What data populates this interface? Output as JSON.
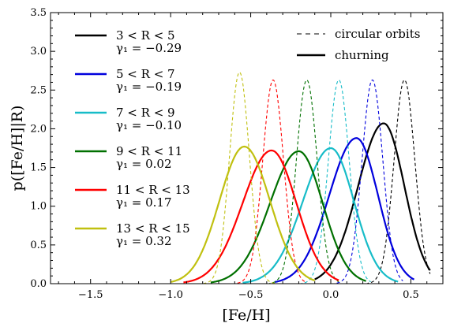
{
  "chart_data": {
    "type": "line",
    "xlabel": "[Fe/H]",
    "ylabel": "p([Fe/H]|R)",
    "xlim": [
      -1.75,
      0.7
    ],
    "ylim": [
      0,
      3.5
    ],
    "xticks": [
      -1.5,
      -1.0,
      -0.5,
      0.0,
      0.5
    ],
    "xtick_labels": [
      "−1.5",
      "−1.0",
      "−0.5",
      "0.0",
      "0.5"
    ],
    "yticks": [
      0.0,
      0.5,
      1.0,
      1.5,
      2.0,
      2.5,
      3.0,
      3.5
    ],
    "ytick_labels": [
      "0.0",
      "0.5",
      "1.0",
      "1.5",
      "2.0",
      "2.5",
      "3.0",
      "3.5"
    ],
    "grid": false,
    "series": [
      {
        "name": "3 < R < 5",
        "gamma_label": "γ₁ = −0.29",
        "color": "#000000",
        "circular": {
          "peak_x": 0.46,
          "peak_y": 2.63,
          "sigma": 0.065,
          "min_x": 0.15,
          "max_x": 0.62
        },
        "churning": {
          "peak_x": 0.33,
          "peak_y": 2.07,
          "sigma_left": 0.16,
          "sigma_right": 0.13,
          "min_x": -0.1,
          "max_x": 0.62
        }
      },
      {
        "name": "5 < R < 7",
        "gamma_label": "γ₁ = −0.19",
        "color": "#0000dd",
        "circular": {
          "peak_x": 0.26,
          "peak_y": 2.63,
          "sigma": 0.065,
          "min_x": -0.1,
          "max_x": 0.45
        },
        "churning": {
          "peak_x": 0.16,
          "peak_y": 1.88,
          "sigma_left": 0.17,
          "sigma_right": 0.135,
          "min_x": -0.35,
          "max_x": 0.52
        }
      },
      {
        "name": "7 < R < 9",
        "gamma_label": "γ₁ = −0.10",
        "color": "#17bcc8",
        "circular": {
          "peak_x": 0.05,
          "peak_y": 2.63,
          "sigma": 0.065,
          "min_x": -0.3,
          "max_x": 0.25
        },
        "churning": {
          "peak_x": 0.0,
          "peak_y": 1.75,
          "sigma_left": 0.175,
          "sigma_right": 0.145,
          "min_x": -0.55,
          "max_x": 0.42
        }
      },
      {
        "name": "9 < R < 11",
        "gamma_label": "γ₁ = 0.02",
        "color": "#007000",
        "circular": {
          "peak_x": -0.15,
          "peak_y": 2.63,
          "sigma": 0.065,
          "min_x": -0.5,
          "max_x": 0.05
        },
        "churning": {
          "peak_x": -0.2,
          "peak_y": 1.71,
          "sigma_left": 0.18,
          "sigma_right": 0.15,
          "min_x": -0.75,
          "max_x": 0.22
        }
      },
      {
        "name": "11 < R < 13",
        "gamma_label": "γ₁ = 0.17",
        "color": "#ff0000",
        "circular": {
          "peak_x": -0.36,
          "peak_y": 2.63,
          "sigma": 0.065,
          "min_x": -0.72,
          "max_x": -0.15
        },
        "churning": {
          "peak_x": -0.37,
          "peak_y": 1.72,
          "sigma_left": 0.18,
          "sigma_right": 0.155,
          "min_x": -0.92,
          "max_x": 0.05
        }
      },
      {
        "name": "13 < R < 15",
        "gamma_label": "γ₁ = 0.32",
        "color": "#c0c010",
        "circular": {
          "peak_x": -0.57,
          "peak_y": 2.73,
          "sigma": 0.062,
          "min_x": -0.9,
          "max_x": -0.35
        },
        "churning": {
          "peak_x": -0.54,
          "peak_y": 1.77,
          "sigma_left": 0.155,
          "sigma_right": 0.16,
          "min_x": -1.0,
          "max_x": -0.1
        }
      }
    ],
    "style_legend": [
      {
        "label": "circular orbits",
        "dash": "dashed"
      },
      {
        "label": "churning",
        "dash": "solid"
      }
    ]
  }
}
